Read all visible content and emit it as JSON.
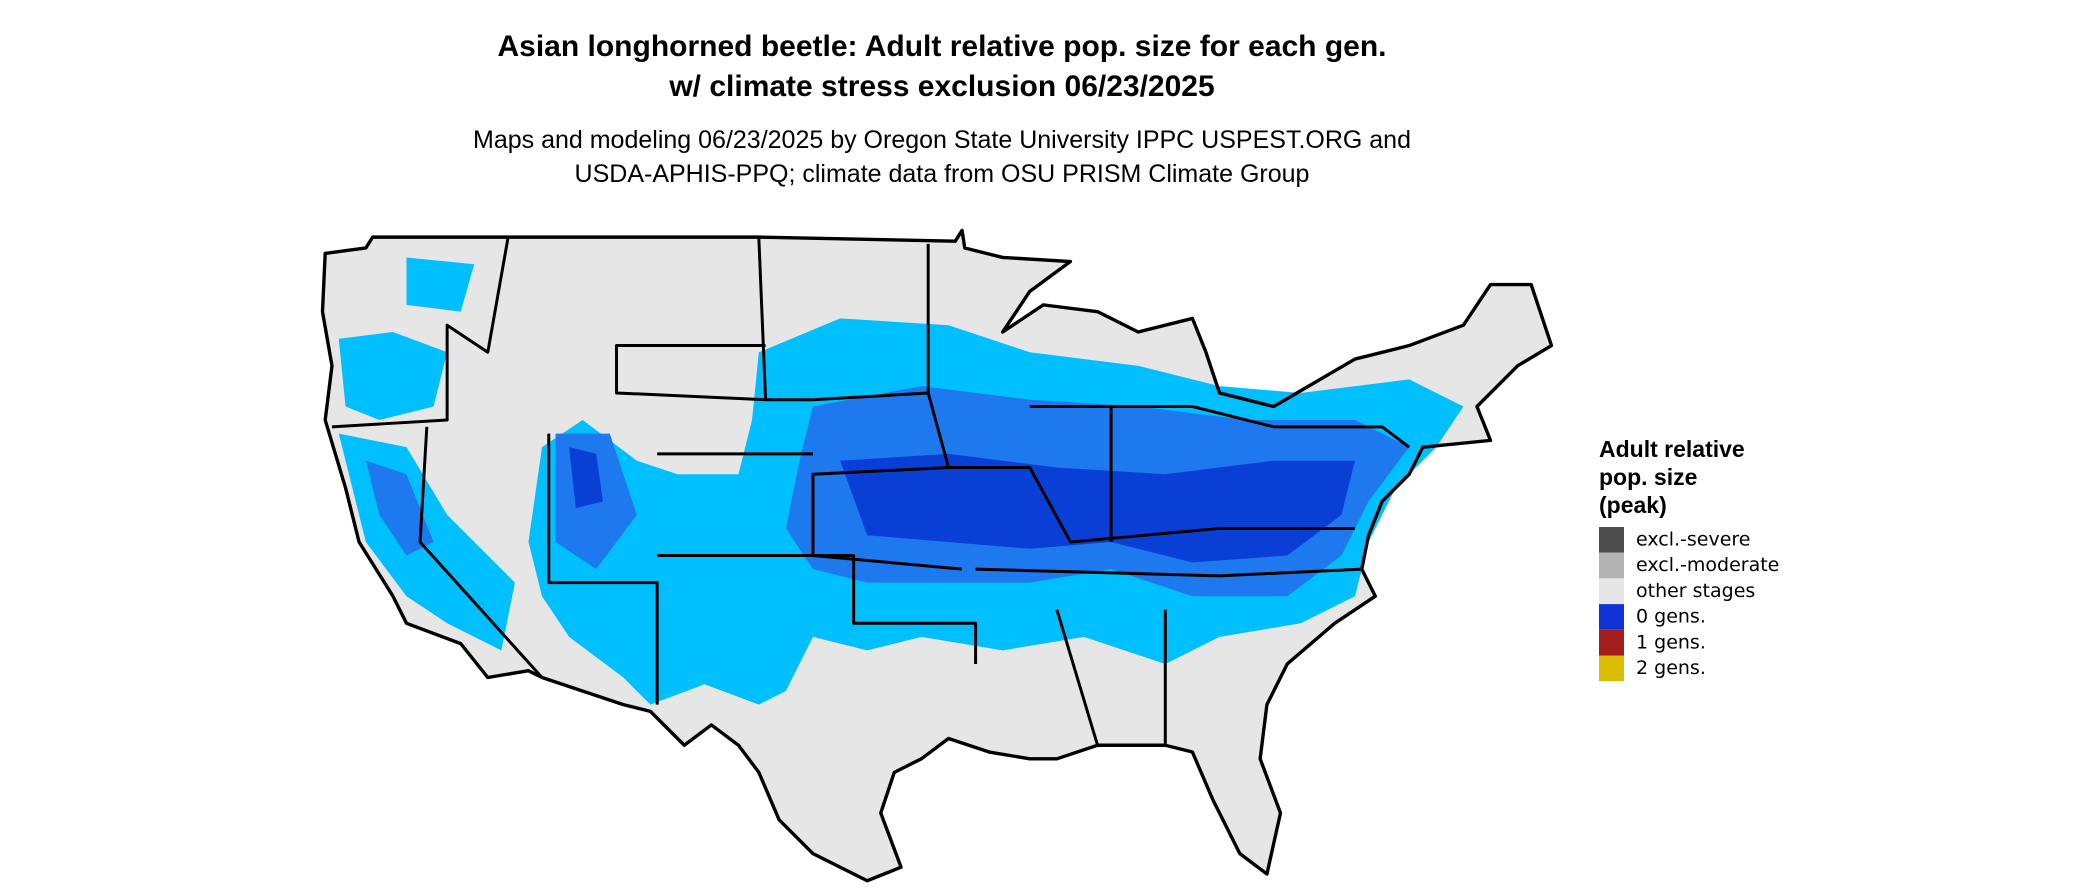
{
  "title": [
    "Asian longhorned beetle: Adult relative pop. size for each gen.",
    "w/ climate stress exclusion 06/23/2025"
  ],
  "subtitle": [
    "Maps and modeling 06/23/2025 by Oregon State University IPPC USPEST.ORG and",
    "USDA-APHIS-PPQ; climate data from OSU PRISM Climate Group"
  ],
  "legend": {
    "title": [
      "Adult relative",
      "pop. size",
      "(peak)"
    ],
    "items": [
      {
        "label": "excl.-severe",
        "color": "#4d4d4d"
      },
      {
        "label": "excl.-moderate",
        "color": "#b3b3b3"
      },
      {
        "label": "other stages",
        "color": "#e6e6e6"
      },
      {
        "label": "0 gens.",
        "color": "#0f33d6"
      },
      {
        "label": "1 gens.",
        "color": "#a51c1c"
      },
      {
        "label": "2 gens.",
        "color": "#d9bd00"
      }
    ]
  }
}
